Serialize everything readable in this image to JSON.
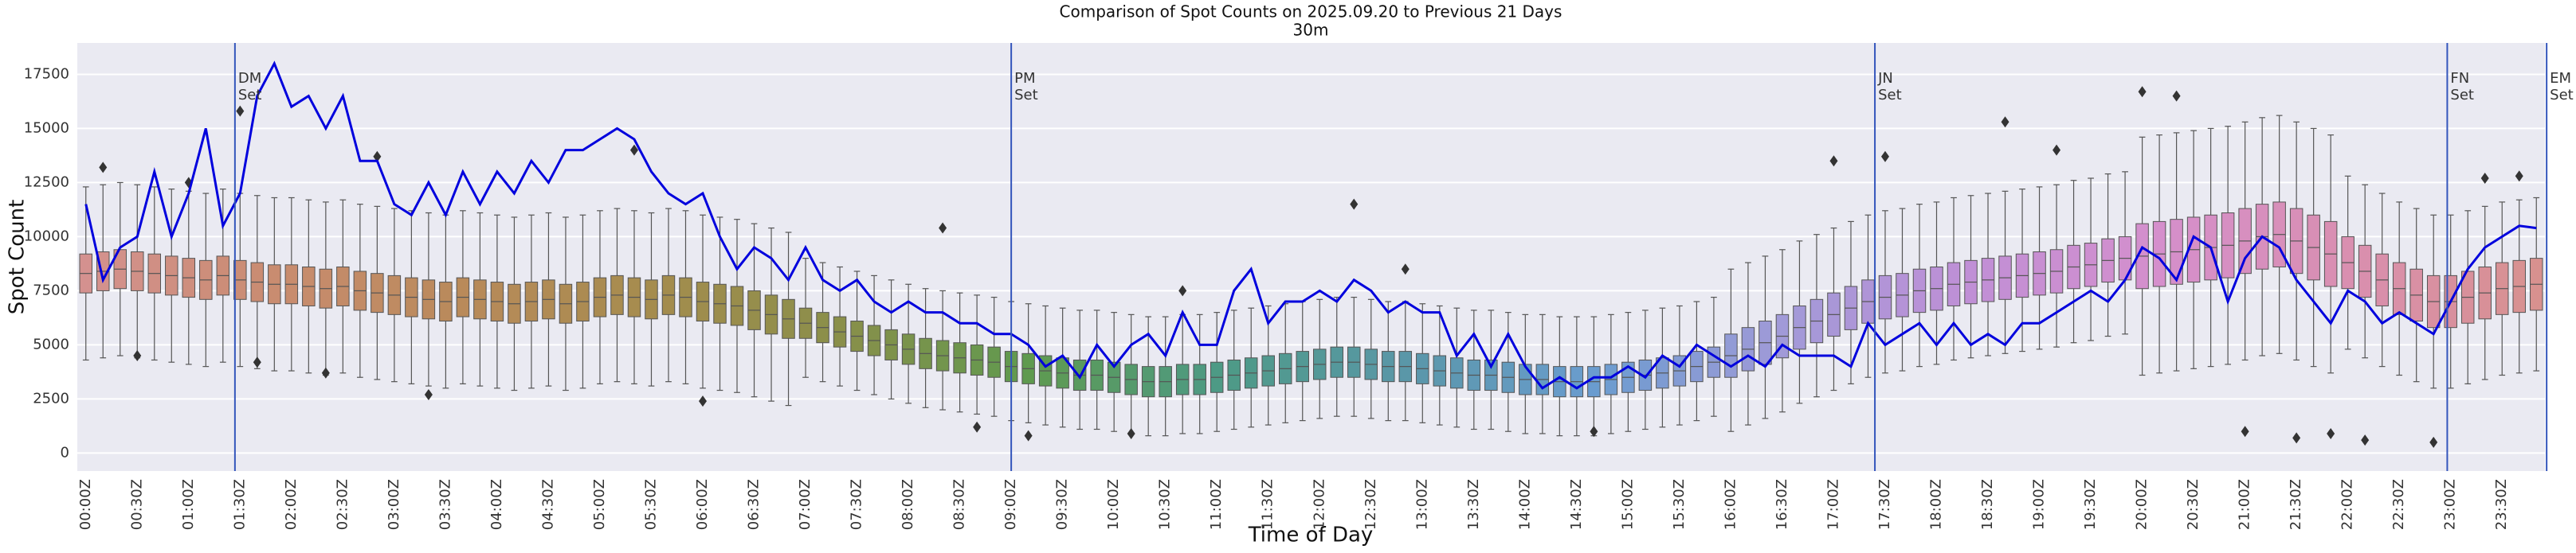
{
  "chart_data": {
    "type": "box",
    "title": "Comparison of Spot Counts on 2025.09.20 to Previous 21 Days",
    "subtitle": "30m",
    "xlabel": "Time of Day",
    "ylabel": "Spot Count",
    "categories": [
      "00:00Z",
      null,
      null,
      "00:30Z",
      null,
      null,
      "01:00Z",
      null,
      null,
      "01:30Z",
      null,
      null,
      "02:00Z",
      null,
      null,
      "02:30Z",
      null,
      null,
      "03:00Z",
      null,
      null,
      "03:30Z",
      null,
      null,
      "04:00Z",
      null,
      null,
      "04:30Z",
      null,
      null,
      "05:00Z",
      null,
      null,
      "05:30Z",
      null,
      null,
      "06:00Z",
      null,
      null,
      "06:30Z",
      null,
      null,
      "07:00Z",
      null,
      null,
      "07:30Z",
      null,
      null,
      "08:00Z",
      null,
      null,
      "08:30Z",
      null,
      null,
      "09:00Z",
      null,
      null,
      "09:30Z",
      null,
      null,
      "10:00Z",
      null,
      null,
      "10:30Z",
      null,
      null,
      "11:00Z",
      null,
      null,
      "11:30Z",
      null,
      null,
      "12:00Z",
      null,
      null,
      "12:30Z",
      null,
      null,
      "13:00Z",
      null,
      null,
      "13:30Z",
      null,
      null,
      "14:00Z",
      null,
      null,
      "14:30Z",
      null,
      null,
      "15:00Z",
      null,
      null,
      "15:30Z",
      null,
      null,
      "16:00Z",
      null,
      null,
      "16:30Z",
      null,
      null,
      "17:00Z",
      null,
      null,
      "17:30Z",
      null,
      null,
      "18:00Z",
      null,
      null,
      "18:30Z",
      null,
      null,
      "19:00Z",
      null,
      null,
      "19:30Z",
      null,
      null,
      "20:00Z",
      null,
      null,
      "20:30Z",
      null,
      null,
      "21:00Z",
      null,
      null,
      "21:30Z",
      null,
      null,
      "22:00Z",
      null,
      null,
      "22:30Z",
      null,
      null,
      "23:00Z",
      null,
      null,
      "23:30Z",
      null,
      null
    ],
    "box": {
      "median": [
        8300,
        8400,
        8500,
        8400,
        8300,
        8200,
        8100,
        8000,
        8200,
        8000,
        7900,
        7800,
        7800,
        7700,
        7600,
        7700,
        7500,
        7400,
        7300,
        7200,
        7100,
        7000,
        7200,
        7100,
        7000,
        6900,
        7000,
        7100,
        6900,
        7000,
        7200,
        7300,
        7200,
        7100,
        7300,
        7200,
        7000,
        6900,
        6800,
        6600,
        6400,
        6200,
        6000,
        5800,
        5600,
        5400,
        5200,
        5000,
        4800,
        4600,
        4500,
        4400,
        4300,
        4200,
        4000,
        3900,
        3800,
        3700,
        3600,
        3600,
        3500,
        3400,
        3300,
        3300,
        3400,
        3400,
        3500,
        3600,
        3700,
        3800,
        3900,
        4000,
        4100,
        4200,
        4200,
        4100,
        4000,
        4000,
        3900,
        3800,
        3700,
        3600,
        3600,
        3500,
        3400,
        3400,
        3300,
        3300,
        3300,
        3400,
        3500,
        3600,
        3700,
        3800,
        4000,
        4200,
        4500,
        4800,
        5100,
        5400,
        5800,
        6100,
        6400,
        6700,
        7000,
        7200,
        7300,
        7500,
        7600,
        7800,
        7900,
        8000,
        8100,
        8200,
        8300,
        8400,
        8600,
        8700,
        8900,
        9000,
        9100,
        9200,
        9300,
        9400,
        9500,
        9600,
        9800,
        10000,
        10100,
        9800,
        9500,
        9200,
        8800,
        8400,
        8000,
        7600,
        7300,
        7000,
        7000,
        7200,
        7400,
        7600,
        7700,
        7800
      ],
      "q1": [
        7400,
        7500,
        7600,
        7500,
        7400,
        7300,
        7200,
        7100,
        7300,
        7100,
        7000,
        6900,
        6900,
        6800,
        6700,
        6800,
        6600,
        6500,
        6400,
        6300,
        6200,
        6100,
        6300,
        6200,
        6100,
        6000,
        6100,
        6200,
        6000,
        6100,
        6300,
        6400,
        6300,
        6200,
        6400,
        6300,
        6100,
        6000,
        5900,
        5700,
        5500,
        5300,
        5300,
        5100,
        4900,
        4700,
        4500,
        4300,
        4100,
        3900,
        3800,
        3700,
        3600,
        3500,
        3300,
        3200,
        3100,
        3000,
        2900,
        2900,
        2800,
        2700,
        2600,
        2600,
        2700,
        2700,
        2800,
        2900,
        3000,
        3100,
        3200,
        3300,
        3400,
        3500,
        3500,
        3400,
        3300,
        3300,
        3200,
        3100,
        3000,
        2900,
        2900,
        2800,
        2700,
        2700,
        2600,
        2600,
        2600,
        2700,
        2800,
        2900,
        3000,
        3100,
        3300,
        3500,
        3500,
        3800,
        4100,
        4400,
        4800,
        5100,
        5400,
        5700,
        6000,
        6200,
        6300,
        6500,
        6600,
        6800,
        6900,
        7000,
        7100,
        7200,
        7300,
        7400,
        7600,
        7700,
        7900,
        8000,
        7600,
        7700,
        7800,
        7900,
        8000,
        8100,
        8300,
        8500,
        8600,
        8300,
        8000,
        7700,
        7600,
        7200,
        6800,
        6400,
        6100,
        5800,
        5800,
        6000,
        6200,
        6400,
        6500,
        6600
      ],
      "q3": [
        9200,
        9300,
        9400,
        9300,
        9200,
        9100,
        9000,
        8900,
        9100,
        8900,
        8800,
        8700,
        8700,
        8600,
        8500,
        8600,
        8400,
        8300,
        8200,
        8100,
        8000,
        7900,
        8100,
        8000,
        7900,
        7800,
        7900,
        8000,
        7800,
        7900,
        8100,
        8200,
        8100,
        8000,
        8200,
        8100,
        7900,
        7800,
        7700,
        7500,
        7300,
        7100,
        6700,
        6500,
        6300,
        6100,
        5900,
        5700,
        5500,
        5300,
        5200,
        5100,
        5000,
        4900,
        4700,
        4600,
        4500,
        4400,
        4300,
        4300,
        4200,
        4100,
        4000,
        4000,
        4100,
        4100,
        4200,
        4300,
        4400,
        4500,
        4600,
        4700,
        4800,
        4900,
        4900,
        4800,
        4700,
        4700,
        4600,
        4500,
        4400,
        4300,
        4300,
        4200,
        4100,
        4100,
        4000,
        4000,
        4000,
        4100,
        4200,
        4300,
        4400,
        4500,
        4700,
        4900,
        5500,
        5800,
        6100,
        6400,
        6800,
        7100,
        7400,
        7700,
        8000,
        8200,
        8300,
        8500,
        8600,
        8800,
        8900,
        9000,
        9100,
        9200,
        9300,
        9400,
        9600,
        9700,
        9900,
        10000,
        10600,
        10700,
        10800,
        10900,
        11000,
        11100,
        11300,
        11500,
        11600,
        11300,
        11000,
        10700,
        10000,
        9600,
        9200,
        8800,
        8500,
        8200,
        8200,
        8400,
        8600,
        8800,
        8900,
        9000
      ],
      "whislo": [
        4300,
        4400,
        4500,
        4400,
        4300,
        4200,
        4100,
        4000,
        4200,
        4000,
        3900,
        3800,
        3800,
        3700,
        3600,
        3700,
        3500,
        3400,
        3300,
        3200,
        3100,
        3000,
        3200,
        3100,
        3000,
        2900,
        3000,
        3100,
        2900,
        3000,
        3200,
        3300,
        3200,
        3100,
        3300,
        3200,
        3000,
        2900,
        2800,
        2600,
        2400,
        2200,
        3500,
        3300,
        3100,
        2900,
        2700,
        2500,
        2300,
        2100,
        2000,
        1900,
        1800,
        1700,
        1500,
        1400,
        1300,
        1200,
        1100,
        1100,
        1000,
        900,
        800,
        800,
        900,
        900,
        1000,
        1100,
        1200,
        1300,
        1400,
        1500,
        1600,
        1700,
        1700,
        1600,
        1500,
        1500,
        1400,
        1300,
        1200,
        1100,
        1100,
        1000,
        900,
        900,
        800,
        800,
        800,
        900,
        1000,
        1100,
        1200,
        1300,
        1500,
        1700,
        1000,
        1300,
        1600,
        1900,
        2300,
        2600,
        2900,
        3200,
        3500,
        3700,
        3800,
        4000,
        4100,
        4300,
        4400,
        4500,
        4600,
        4700,
        4800,
        4900,
        5100,
        5200,
        5400,
        5500,
        3600,
        3700,
        3800,
        3900,
        4000,
        4100,
        4300,
        4500,
        4600,
        4300,
        4000,
        3700,
        4800,
        4400,
        4000,
        3600,
        3300,
        3000,
        3000,
        3200,
        3400,
        3600,
        3700,
        3800
      ],
      "whishi": [
        12300,
        12400,
        12500,
        12400,
        12300,
        12200,
        12100,
        12000,
        12200,
        12000,
        11900,
        11800,
        11800,
        11700,
        11600,
        11700,
        11500,
        11400,
        11300,
        11200,
        11100,
        11000,
        11200,
        11100,
        11000,
        10900,
        11000,
        11100,
        10900,
        11000,
        11200,
        11300,
        11200,
        11100,
        11300,
        11200,
        11000,
        10900,
        10800,
        10600,
        10400,
        10200,
        9000,
        8800,
        8600,
        8400,
        8200,
        8000,
        7800,
        7600,
        7500,
        7400,
        7300,
        7200,
        7000,
        6900,
        6800,
        6700,
        6600,
        6600,
        6500,
        6400,
        6300,
        6300,
        6400,
        6400,
        6500,
        6600,
        6700,
        6800,
        6900,
        7000,
        7100,
        7200,
        7200,
        7100,
        7000,
        7000,
        6900,
        6800,
        6700,
        6600,
        6600,
        6500,
        6400,
        6400,
        6300,
        6300,
        6300,
        6400,
        6500,
        6600,
        6700,
        6800,
        7000,
        7200,
        8500,
        8800,
        9100,
        9400,
        9800,
        10100,
        10400,
        10700,
        11000,
        11200,
        11300,
        11500,
        11600,
        11800,
        11900,
        12000,
        12100,
        12200,
        12300,
        12400,
        12600,
        12700,
        12900,
        13000,
        14600,
        14700,
        14800,
        14900,
        15000,
        15100,
        15300,
        15500,
        15600,
        15300,
        15000,
        14700,
        12800,
        12400,
        12000,
        11600,
        11300,
        11000,
        11000,
        11200,
        11400,
        11600,
        11700,
        11800
      ]
    },
    "box_palette": [
      "#d4918f",
      "#c98c70",
      "#b98a5a",
      "#a58c4e",
      "#8a8f4a",
      "#5f9a4f",
      "#4d9a85",
      "#5a97a8",
      "#6a9ccf",
      "#a19ad8",
      "#c08fd6",
      "#d58fcc",
      "#d98fb0",
      "#d8918f"
    ],
    "box_edge": "#555555",
    "outliers": {
      "x": [
        1,
        3,
        6,
        9,
        10,
        14,
        17,
        20,
        32,
        36,
        50,
        52,
        55,
        61,
        64,
        74,
        77,
        88,
        102,
        105,
        112,
        115,
        120,
        122,
        126,
        129,
        131,
        133,
        137,
        140,
        142
      ],
      "y": [
        13200,
        4500,
        12500,
        15800,
        4200,
        3700,
        13700,
        2700,
        14000,
        2400,
        10400,
        1200,
        800,
        900,
        7500,
        11500,
        8500,
        1000,
        13500,
        13700,
        15300,
        14000,
        16700,
        16500,
        1000,
        700,
        900,
        600,
        500,
        12700,
        12800
      ]
    },
    "today": {
      "color": "#0000dd",
      "values": [
        11500,
        8000,
        9500,
        10000,
        13000,
        10000,
        12000,
        15000,
        10500,
        12000,
        16500,
        18000,
        16000,
        16500,
        15000,
        16500,
        13500,
        13500,
        11500,
        11000,
        12500,
        11000,
        13000,
        11500,
        13000,
        12000,
        13500,
        12500,
        14000,
        14000,
        14500,
        15000,
        14500,
        13000,
        12000,
        11500,
        12000,
        10000,
        8500,
        9500,
        9000,
        8000,
        9500,
        8000,
        7500,
        8000,
        7000,
        6500,
        7000,
        6500,
        6500,
        6000,
        6000,
        5500,
        5500,
        5000,
        4000,
        4500,
        3500,
        5000,
        4000,
        5000,
        5500,
        4500,
        6500,
        5000,
        5000,
        7500,
        8500,
        6000,
        7000,
        7000,
        7500,
        7000,
        8000,
        7500,
        6500,
        7000,
        6500,
        6500,
        4500,
        5500,
        4000,
        5500,
        4000,
        3000,
        3500,
        3000,
        3500,
        3500,
        4000,
        3500,
        4500,
        4000,
        5000,
        4500,
        4000,
        4500,
        4000,
        5000,
        4500,
        4500,
        4500,
        4000,
        6000,
        5000,
        5500,
        6000,
        5000,
        6000,
        5000,
        5500,
        5000,
        6000,
        6000,
        6500,
        7000,
        7500,
        7000,
        8000,
        9500,
        9000,
        8000,
        10000,
        9500,
        7000,
        9000,
        10000,
        9500,
        8000,
        7000,
        6000,
        7500,
        7000,
        6000,
        6500,
        6000,
        5500,
        7000,
        8500,
        9500,
        10000,
        10500,
        10400
      ]
    },
    "annotations": [
      {
        "x": 8.7,
        "lines": [
          "DM",
          "Set"
        ]
      },
      {
        "x": 54,
        "lines": [
          "PM",
          "Set"
        ]
      },
      {
        "x": 104.4,
        "lines": [
          "JN",
          "Set"
        ]
      },
      {
        "x": 137.8,
        "lines": [
          "FN",
          "Set"
        ]
      },
      {
        "x": 143.6,
        "lines": [
          "EM",
          "Set"
        ]
      }
    ],
    "annotation_color": "#3355bb",
    "ylim": [
      -830,
      18950
    ],
    "yticks": [
      0,
      2500,
      5000,
      7500,
      10000,
      12500,
      15000,
      17500
    ],
    "grid": true
  }
}
